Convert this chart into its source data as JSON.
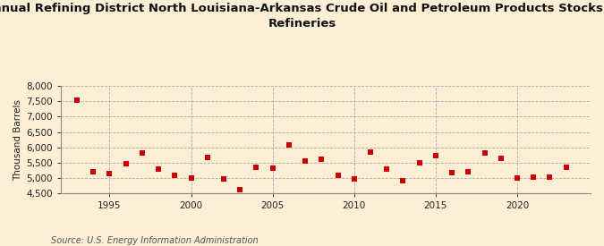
{
  "title_line1": "Annual Refining District North Louisiana-Arkansas Crude Oil and Petroleum Products Stocks at",
  "title_line2": "Refineries",
  "ylabel": "Thousand Barrels",
  "source": "Source: U.S. Energy Information Administration",
  "background_color": "#fcefd5",
  "marker_color": "#cc0000",
  "years": [
    1993,
    1994,
    1995,
    1996,
    1997,
    1998,
    1999,
    2000,
    2001,
    2002,
    2003,
    2004,
    2005,
    2006,
    2007,
    2008,
    2009,
    2010,
    2011,
    2012,
    2013,
    2014,
    2015,
    2016,
    2017,
    2018,
    2019,
    2020,
    2021,
    2022,
    2023
  ],
  "values": [
    7540,
    5200,
    5150,
    5480,
    5820,
    5280,
    5100,
    5000,
    5680,
    4970,
    4620,
    5350,
    5330,
    6070,
    5540,
    5600,
    5100,
    4960,
    5850,
    5280,
    4920,
    5490,
    5730,
    5180,
    5200,
    5820,
    5640,
    4990,
    5030,
    5020,
    5340
  ],
  "ylim": [
    4500,
    8000
  ],
  "yticks": [
    4500,
    5000,
    5500,
    6000,
    6500,
    7000,
    7500,
    8000
  ],
  "xlim": [
    1992.0,
    2024.5
  ],
  "xticks": [
    1995,
    2000,
    2005,
    2010,
    2015,
    2020
  ],
  "title_fontsize": 9.5,
  "tick_fontsize": 7.5,
  "ylabel_fontsize": 7.5,
  "source_fontsize": 7.0,
  "marker_size": 14
}
